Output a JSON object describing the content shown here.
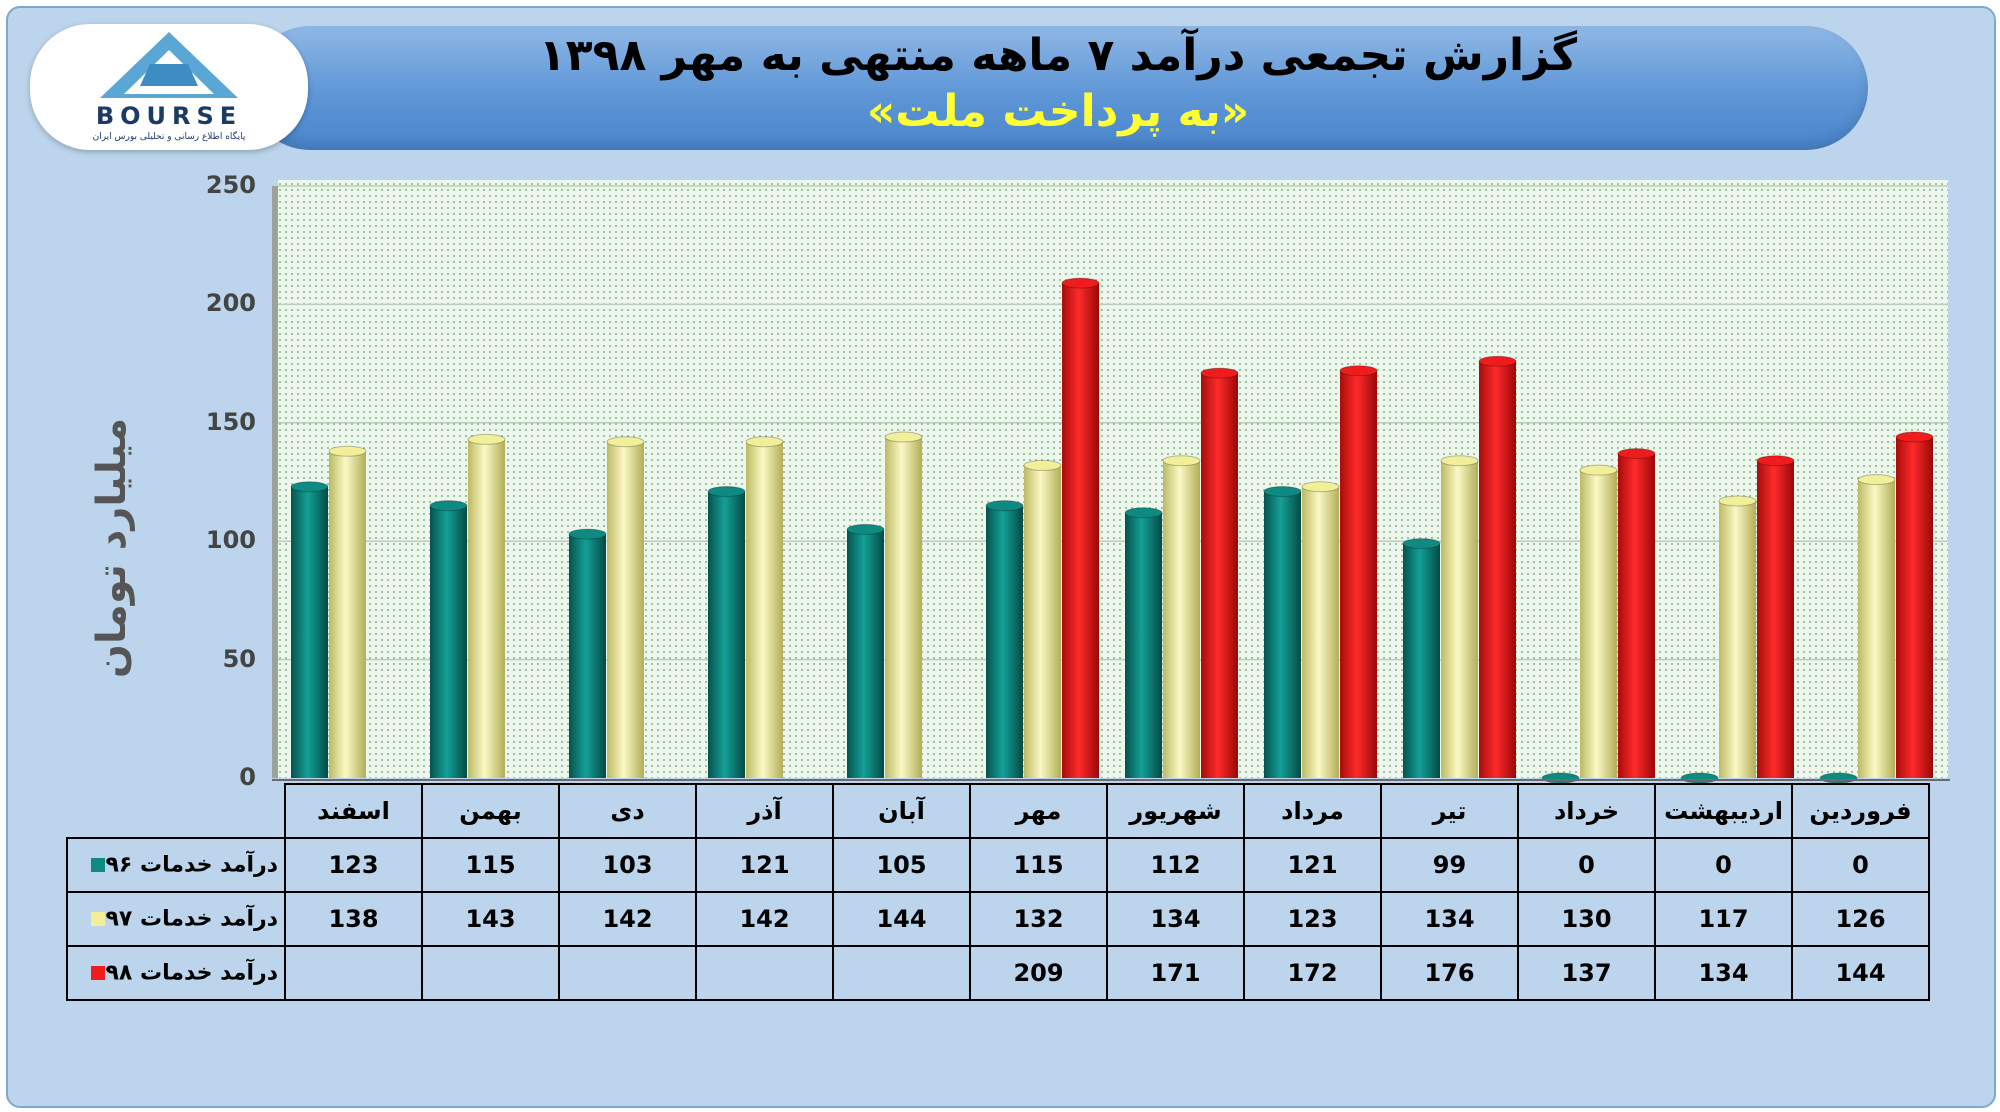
{
  "header": {
    "title": "گزارش تجمعی درآمد ۷ ماهه منتهی به مهر ۱۳۹۸",
    "subtitle": "«به پرداخت ملت»"
  },
  "logo": {
    "name": "BOURSE",
    "tagline": "پایگاه اطلاع رسانی و تحلیلی بورس ایران"
  },
  "chart_data": {
    "type": "bar",
    "ylabel": "میلیارد تومان",
    "ylim": [
      0,
      250
    ],
    "yticks": [
      "0",
      "50",
      "100",
      "150",
      "200",
      "250"
    ],
    "grid": true,
    "categories": [
      "اسفند",
      "بهمن",
      "دی",
      "آذر",
      "آبان",
      "مهر",
      "شهریور",
      "مرداد",
      "تیر",
      "خرداد",
      "اردیبهشت",
      "فروردین"
    ],
    "series": [
      {
        "name": "درآمد خدمات ۹۶",
        "color": "#0f8a82",
        "values": [
          123,
          115,
          103,
          121,
          105,
          115,
          112,
          121,
          99,
          0,
          0,
          0
        ]
      },
      {
        "name": "درآمد خدمات ۹۷",
        "color": "#f2ef9a",
        "values": [
          138,
          143,
          142,
          142,
          144,
          132,
          134,
          123,
          134,
          130,
          117,
          126
        ]
      },
      {
        "name": "درآمد خدمات ۹۸",
        "color": "#ee1c1c",
        "values": [
          null,
          null,
          null,
          null,
          null,
          209,
          171,
          172,
          176,
          137,
          134,
          144
        ]
      }
    ]
  },
  "table": {
    "rows": [
      {
        "label": "درآمد خدمات ۹۶",
        "color": "#0f8a82",
        "cells": [
          "123",
          "115",
          "103",
          "121",
          "105",
          "115",
          "112",
          "121",
          "99",
          "0",
          "0",
          "0"
        ]
      },
      {
        "label": "درآمد خدمات ۹۷",
        "color": "#f2ef9a",
        "cells": [
          "138",
          "143",
          "142",
          "142",
          "144",
          "132",
          "134",
          "123",
          "134",
          "130",
          "117",
          "126"
        ]
      },
      {
        "label": "درآمد خدمات ۹۸",
        "color": "#ee1c1c",
        "cells": [
          "",
          "",
          "",
          "",
          "",
          "209",
          "171",
          "172",
          "176",
          "137",
          "134",
          "144"
        ]
      }
    ]
  }
}
